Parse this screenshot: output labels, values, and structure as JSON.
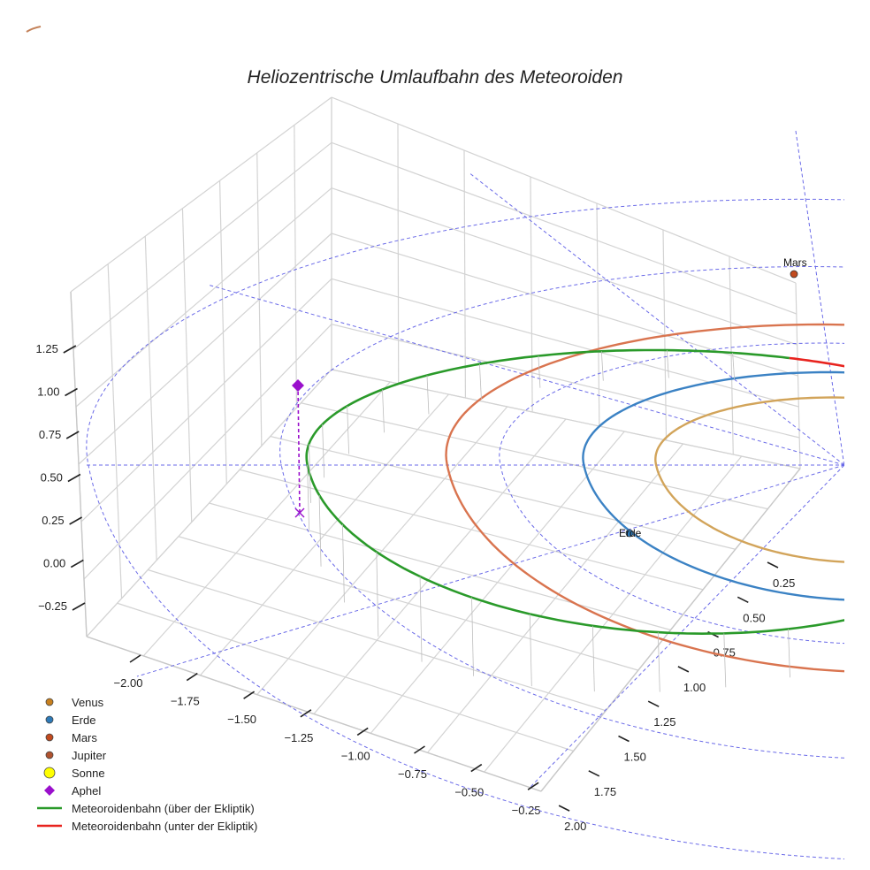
{
  "chart_data": {
    "type": "line3d",
    "title": "Heliozentrische Umlaufbahn des Meteoroiden",
    "x_ticks": [
      "−2.00",
      "−1.75",
      "−1.50",
      "−1.25",
      "−1.00",
      "−0.75",
      "−0.50",
      "−0.25"
    ],
    "y_ticks": [
      "0.25",
      "0.50",
      "0.75",
      "1.00",
      "1.25",
      "1.50",
      "1.75",
      "2.00"
    ],
    "z_ticks": [
      "−0.25",
      "0.00",
      "0.25",
      "0.50",
      "0.75",
      "1.00",
      "1.25"
    ],
    "xlim": [
      -2.2,
      0.0
    ],
    "ylim": [
      0.0,
      2.2
    ],
    "zlim": [
      -0.4,
      1.4
    ],
    "planets": [
      {
        "name": "Venus",
        "a": 0.723,
        "color": "#d2a45a",
        "marker_color": "#c8801e",
        "labeled": false
      },
      {
        "name": "Erde",
        "a": 1.0,
        "color": "#3b82c4",
        "marker_color": "#2e7ab8",
        "labeled": true
      },
      {
        "name": "Mars",
        "a": 1.524,
        "color": "#d9744f",
        "marker_color": "#c24a1e",
        "labeled": true
      }
    ],
    "planet_labels": {
      "Erde": "Erde",
      "Mars": "Mars"
    },
    "meteoroid_orbit": {
      "perihelion": 0.75,
      "aphelion": 2.06,
      "above_color": "#2a9a2a",
      "below_color": "#e8231e"
    },
    "aphel_marker": {
      "label": "Aphel",
      "color": "#9a10cc"
    },
    "legend": [
      {
        "label": "Venus",
        "kind": "dot",
        "color": "#c8801e"
      },
      {
        "label": "Erde",
        "kind": "dot",
        "color": "#2e7ab8"
      },
      {
        "label": "Mars",
        "kind": "dot",
        "color": "#c24a1e"
      },
      {
        "label": "Jupiter",
        "kind": "dot",
        "color": "#b0522e"
      },
      {
        "label": "Sonne",
        "kind": "bigdot",
        "color": "#ffff00"
      },
      {
        "label": "Aphel",
        "kind": "diamond",
        "color": "#9a10cc"
      },
      {
        "label": "Meteoroidenbahn (über der Ekliptik)",
        "kind": "line",
        "color": "#2a9a2a"
      },
      {
        "label": "Meteoroidenbahn (unter der Ekliptik)",
        "kind": "line",
        "color": "#e8231e"
      }
    ]
  }
}
